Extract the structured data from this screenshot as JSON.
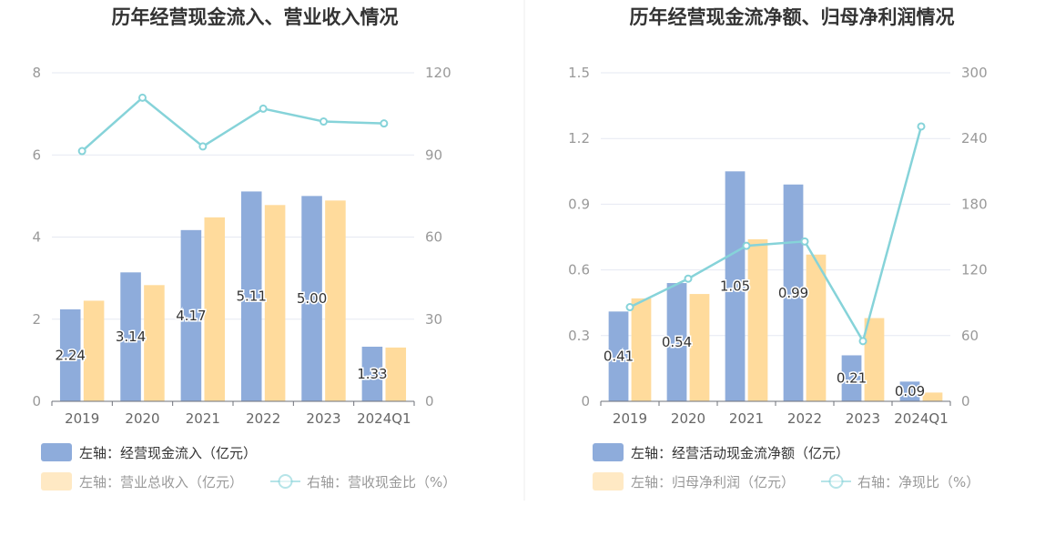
{
  "chart_data": [
    {
      "type": "bar",
      "title": "历年经营现金流入、营业收入情况",
      "categories": [
        "2019",
        "2020",
        "2021",
        "2022",
        "2023",
        "2024Q1"
      ],
      "left_axis": {
        "ylim": [
          0,
          8
        ],
        "ticks": [
          "0",
          "2",
          "4",
          "6",
          "8"
        ]
      },
      "right_axis": {
        "ylim": [
          0,
          120
        ],
        "ticks": [
          "0",
          "30",
          "60",
          "90",
          "120"
        ]
      },
      "series": [
        {
          "name": "左轴：经营现金流入（亿元）",
          "kind": "bar",
          "axis": "left",
          "color": "#8eacdb",
          "values": [
            2.24,
            3.14,
            4.17,
            5.11,
            5.0,
            1.33
          ],
          "labels": [
            "2.24",
            "3.14",
            "4.17",
            "5.11",
            "5.00",
            "1.33"
          ]
        },
        {
          "name": "左轴：营业总收入（亿元）",
          "kind": "bar",
          "axis": "left",
          "color": "#ffdb9c",
          "values": [
            2.45,
            2.83,
            4.48,
            4.78,
            4.89,
            1.31
          ]
        },
        {
          "name": "右轴：营收现金比（%）",
          "kind": "line",
          "axis": "right",
          "color": "#86d3d9",
          "values": [
            91.4,
            110.9,
            93.1,
            106.9,
            102.2,
            101.5
          ]
        }
      ],
      "legend_position": "bottom"
    },
    {
      "type": "bar",
      "title": "历年经营现金流净额、归母净利润情况",
      "categories": [
        "2019",
        "2020",
        "2021",
        "2022",
        "2023",
        "2024Q1"
      ],
      "left_axis": {
        "ylim": [
          0,
          1.5
        ],
        "ticks": [
          "0",
          "0.3",
          "0.6",
          "0.9",
          "1.2",
          "1.5"
        ]
      },
      "right_axis": {
        "ylim": [
          0,
          300
        ],
        "ticks": [
          "0",
          "60",
          "120",
          "180",
          "240",
          "300"
        ]
      },
      "series": [
        {
          "name": "左轴：经营活动现金流净额（亿元）",
          "kind": "bar",
          "axis": "left",
          "color": "#8eacdb",
          "values": [
            0.41,
            0.54,
            1.05,
            0.99,
            0.21,
            0.09
          ],
          "labels": [
            "0.41",
            "0.54",
            "1.05",
            "0.99",
            "0.21",
            "0.09"
          ]
        },
        {
          "name": "左轴：归母净利润（亿元）",
          "kind": "bar",
          "axis": "left",
          "color": "#ffdb9c",
          "values": [
            0.47,
            0.49,
            0.74,
            0.67,
            0.38,
            0.04
          ]
        },
        {
          "name": "右轴：净现比（%）",
          "kind": "line",
          "axis": "right",
          "color": "#86d3d9",
          "values": [
            86,
            112,
            142,
            146,
            55,
            251
          ]
        }
      ],
      "legend_position": "bottom"
    }
  ]
}
